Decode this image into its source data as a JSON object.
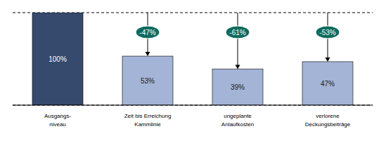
{
  "chart_data": {
    "type": "bar",
    "categories": [
      "Ausgangs-\nniveau",
      "Zeit bis Erreichung\nKammlinie",
      "ungeplante\nAnlaufkosten",
      "verlorene\nDeckungsbeiträge"
    ],
    "values": [
      100,
      53,
      39,
      47
    ],
    "value_labels": [
      "100%",
      "53%",
      "39%",
      "47%"
    ],
    "data_labels": true,
    "colors": [
      "#364a6d",
      "#a3b4d6",
      "#a3b4d6",
      "#a3b4d6"
    ],
    "changes": [
      null,
      -47,
      -61,
      -53
    ],
    "change_labels": [
      null,
      "-47%",
      "-61%",
      "-53%"
    ],
    "ylim": [
      0,
      100
    ],
    "yticks": [
      0,
      100
    ],
    "grid": true,
    "tick_labels": "x"
  }
}
